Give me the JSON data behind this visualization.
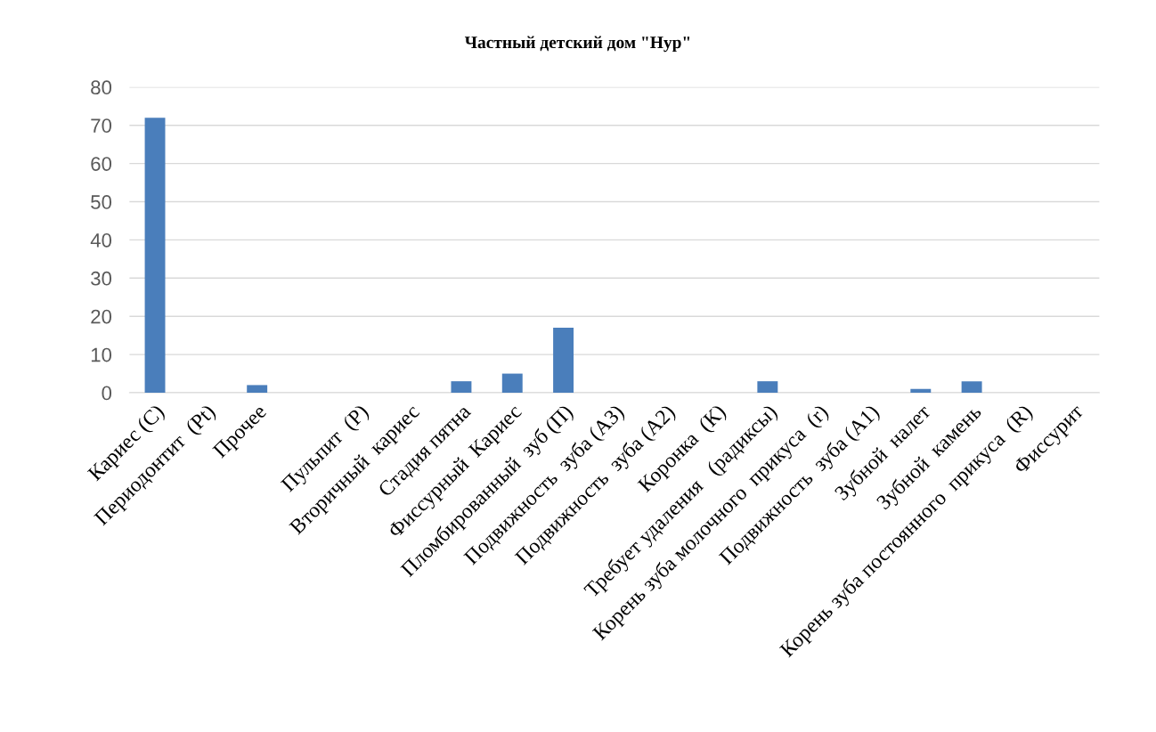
{
  "chart_data": {
    "type": "bar",
    "title": "Частный детский дом \"Нур\"",
    "categories": [
      "Кариес (C)",
      "Периодонтит  (Pt)",
      "Прочее",
      null,
      "Пульпит  (P)",
      "Вторичный  кариес",
      "Стадия пятна",
      "Фиссурный  Кариес",
      "Пломбированный  зуб (П)",
      "Подвижность  зуба (А3)",
      "Подвижность  зуба (А2)",
      "Коронка  (К)",
      "Требует удаления   (радиксы)",
      "Корень зуба молочного  прикуса  (r)",
      "Подвижность  зуба (А1)",
      "Зубной  налет",
      "Зубной  камень",
      "Корень зуба постоянного  прикуса  (R)",
      "Фиссурит"
    ],
    "values": [
      72,
      0,
      2,
      0,
      0,
      0,
      3,
      5,
      17,
      0,
      0,
      0,
      3,
      0,
      0,
      1,
      3,
      0,
      0
    ],
    "color": "#4a7ebb",
    "ylim": [
      0,
      80
    ],
    "yticks": [
      0,
      10,
      20,
      30,
      40,
      50,
      60,
      70,
      80
    ],
    "grid": "y",
    "legend": false
  }
}
